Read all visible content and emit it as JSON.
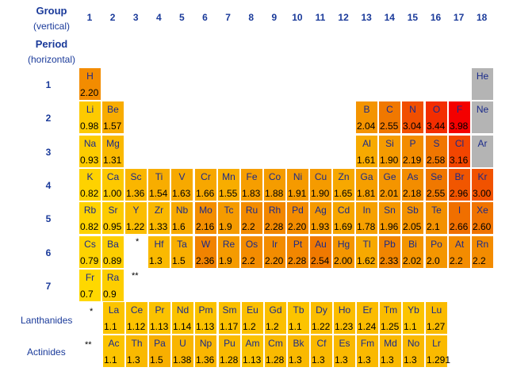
{
  "header": {
    "group_label": "Group",
    "group_sub": "(vertical)",
    "period_label": "Period",
    "period_sub": "(horizontal)"
  },
  "groups": [
    "1",
    "2",
    "3",
    "4",
    "5",
    "6",
    "7",
    "8",
    "9",
    "10",
    "11",
    "12",
    "13",
    "14",
    "15",
    "16",
    "17",
    "18"
  ],
  "periods": [
    "1",
    "2",
    "3",
    "4",
    "5",
    "6",
    "7"
  ],
  "series_labels": {
    "lanthanides": "Lanthanides",
    "actinides": "Actinides"
  },
  "markers": {
    "lanthanide": "*",
    "actinide": "**"
  },
  "colors": {
    "label_blue": "#1a3a9a",
    "scale_low": "#ffd800",
    "scale_mid": "#f07c00",
    "scale_high": "#f40000",
    "no_data": "#b4b4b4"
  },
  "elements": [
    {
      "s": "H",
      "en": "2.20",
      "row": 0,
      "col": 0
    },
    {
      "s": "He",
      "en": "",
      "row": 0,
      "col": 17
    },
    {
      "s": "Li",
      "en": "0.98",
      "row": 1,
      "col": 0
    },
    {
      "s": "Be",
      "en": "1.57",
      "row": 1,
      "col": 1
    },
    {
      "s": "B",
      "en": "2.04",
      "row": 1,
      "col": 12
    },
    {
      "s": "C",
      "en": "2.55",
      "row": 1,
      "col": 13
    },
    {
      "s": "N",
      "en": "3.04",
      "row": 1,
      "col": 14
    },
    {
      "s": "O",
      "en": "3.44",
      "row": 1,
      "col": 15
    },
    {
      "s": "F",
      "en": "3.98",
      "row": 1,
      "col": 16
    },
    {
      "s": "Ne",
      "en": "",
      "row": 1,
      "col": 17
    },
    {
      "s": "Na",
      "en": "0.93",
      "row": 2,
      "col": 0
    },
    {
      "s": "Mg",
      "en": "1.31",
      "row": 2,
      "col": 1
    },
    {
      "s": "Al",
      "en": "1.61",
      "row": 2,
      "col": 12
    },
    {
      "s": "Si",
      "en": "1.90",
      "row": 2,
      "col": 13
    },
    {
      "s": "P",
      "en": "2.19",
      "row": 2,
      "col": 14
    },
    {
      "s": "S",
      "en": "2.58",
      "row": 2,
      "col": 15
    },
    {
      "s": "Cl",
      "en": "3.16",
      "row": 2,
      "col": 16
    },
    {
      "s": "Ar",
      "en": "",
      "row": 2,
      "col": 17
    },
    {
      "s": "K",
      "en": "0.82",
      "row": 3,
      "col": 0
    },
    {
      "s": "Ca",
      "en": "1.00",
      "row": 3,
      "col": 1
    },
    {
      "s": "Sc",
      "en": "1.36",
      "row": 3,
      "col": 2
    },
    {
      "s": "Ti",
      "en": "1.54",
      "row": 3,
      "col": 3
    },
    {
      "s": "V",
      "en": "1.63",
      "row": 3,
      "col": 4
    },
    {
      "s": "Cr",
      "en": "1.66",
      "row": 3,
      "col": 5
    },
    {
      "s": "Mn",
      "en": "1.55",
      "row": 3,
      "col": 6
    },
    {
      "s": "Fe",
      "en": "1.83",
      "row": 3,
      "col": 7
    },
    {
      "s": "Co",
      "en": "1.88",
      "row": 3,
      "col": 8
    },
    {
      "s": "Ni",
      "en": "1.91",
      "row": 3,
      "col": 9
    },
    {
      "s": "Cu",
      "en": "1.90",
      "row": 3,
      "col": 10
    },
    {
      "s": "Zn",
      "en": "1.65",
      "row": 3,
      "col": 11
    },
    {
      "s": "Ga",
      "en": "1.81",
      "row": 3,
      "col": 12
    },
    {
      "s": "Ge",
      "en": "2.01",
      "row": 3,
      "col": 13
    },
    {
      "s": "As",
      "en": "2.18",
      "row": 3,
      "col": 14
    },
    {
      "s": "Se",
      "en": "2.55",
      "row": 3,
      "col": 15
    },
    {
      "s": "Br",
      "en": "2.96",
      "row": 3,
      "col": 16
    },
    {
      "s": "Kr",
      "en": "3.00",
      "row": 3,
      "col": 17
    },
    {
      "s": "Rb",
      "en": "0.82",
      "row": 4,
      "col": 0
    },
    {
      "s": "Sr",
      "en": "0.95",
      "row": 4,
      "col": 1
    },
    {
      "s": "Y",
      "en": "1.22",
      "row": 4,
      "col": 2
    },
    {
      "s": "Zr",
      "en": "1.33",
      "row": 4,
      "col": 3
    },
    {
      "s": "Nb",
      "en": "1.6",
      "row": 4,
      "col": 4
    },
    {
      "s": "Mo",
      "en": "2.16",
      "row": 4,
      "col": 5
    },
    {
      "s": "Tc",
      "en": "1.9",
      "row": 4,
      "col": 6
    },
    {
      "s": "Ru",
      "en": "2.2",
      "row": 4,
      "col": 7
    },
    {
      "s": "Rh",
      "en": "2.28",
      "row": 4,
      "col": 8
    },
    {
      "s": "Pd",
      "en": "2.20",
      "row": 4,
      "col": 9
    },
    {
      "s": "Ag",
      "en": "1.93",
      "row": 4,
      "col": 10
    },
    {
      "s": "Cd",
      "en": "1.69",
      "row": 4,
      "col": 11
    },
    {
      "s": "In",
      "en": "1.78",
      "row": 4,
      "col": 12
    },
    {
      "s": "Sn",
      "en": "1.96",
      "row": 4,
      "col": 13
    },
    {
      "s": "Sb",
      "en": "2.05",
      "row": 4,
      "col": 14
    },
    {
      "s": "Te",
      "en": "2.1",
      "row": 4,
      "col": 15
    },
    {
      "s": "I",
      "en": "2.66",
      "row": 4,
      "col": 16
    },
    {
      "s": "Xe",
      "en": "2.60",
      "row": 4,
      "col": 17
    },
    {
      "s": "Cs",
      "en": "0.79",
      "row": 5,
      "col": 0
    },
    {
      "s": "Ba",
      "en": "0.89",
      "row": 5,
      "col": 1
    },
    {
      "s": "Hf",
      "en": "1.3",
      "row": 5,
      "col": 3
    },
    {
      "s": "Ta",
      "en": "1.5",
      "row": 5,
      "col": 4
    },
    {
      "s": "W",
      "en": "2.36",
      "row": 5,
      "col": 5
    },
    {
      "s": "Re",
      "en": "1.9",
      "row": 5,
      "col": 6
    },
    {
      "s": "Os",
      "en": "2.2",
      "row": 5,
      "col": 7
    },
    {
      "s": "Ir",
      "en": "2.20",
      "row": 5,
      "col": 8
    },
    {
      "s": "Pt",
      "en": "2.28",
      "row": 5,
      "col": 9
    },
    {
      "s": "Au",
      "en": "2.54",
      "row": 5,
      "col": 10
    },
    {
      "s": "Hg",
      "en": "2.00",
      "row": 5,
      "col": 11
    },
    {
      "s": "Tl",
      "en": "1.62",
      "row": 5,
      "col": 12
    },
    {
      "s": "Pb",
      "en": "2.33",
      "row": 5,
      "col": 13
    },
    {
      "s": "Bi",
      "en": "2.02",
      "row": 5,
      "col": 14
    },
    {
      "s": "Po",
      "en": "2.0",
      "row": 5,
      "col": 15
    },
    {
      "s": "At",
      "en": "2.2",
      "row": 5,
      "col": 16
    },
    {
      "s": "Rn",
      "en": "2.2",
      "row": 5,
      "col": 17
    },
    {
      "s": "Fr",
      "en": "0.7",
      "row": 6,
      "col": 0
    },
    {
      "s": "Ra",
      "en": "0.9",
      "row": 6,
      "col": 1
    },
    {
      "s": "La",
      "en": "1.1",
      "row": 7,
      "col": 0
    },
    {
      "s": "Ce",
      "en": "1.12",
      "row": 7,
      "col": 1
    },
    {
      "s": "Pr",
      "en": "1.13",
      "row": 7,
      "col": 2
    },
    {
      "s": "Nd",
      "en": "1.14",
      "row": 7,
      "col": 3
    },
    {
      "s": "Pm",
      "en": "1.13",
      "row": 7,
      "col": 4
    },
    {
      "s": "Sm",
      "en": "1.17",
      "row": 7,
      "col": 5
    },
    {
      "s": "Eu",
      "en": "1.2",
      "row": 7,
      "col": 6
    },
    {
      "s": "Gd",
      "en": "1.2",
      "row": 7,
      "col": 7
    },
    {
      "s": "Tb",
      "en": "1.1",
      "row": 7,
      "col": 8
    },
    {
      "s": "Dy",
      "en": "1.22",
      "row": 7,
      "col": 9
    },
    {
      "s": "Ho",
      "en": "1.23",
      "row": 7,
      "col": 10
    },
    {
      "s": "Er",
      "en": "1.24",
      "row": 7,
      "col": 11
    },
    {
      "s": "Tm",
      "en": "1.25",
      "row": 7,
      "col": 12
    },
    {
      "s": "Yb",
      "en": "1.1",
      "row": 7,
      "col": 13
    },
    {
      "s": "Lu",
      "en": "1.27",
      "row": 7,
      "col": 14
    },
    {
      "s": "Ac",
      "en": "1.1",
      "row": 8,
      "col": 0
    },
    {
      "s": "Th",
      "en": "1.3",
      "row": 8,
      "col": 1
    },
    {
      "s": "Pa",
      "en": "1.5",
      "row": 8,
      "col": 2
    },
    {
      "s": "U",
      "en": "1.38",
      "row": 8,
      "col": 3
    },
    {
      "s": "Np",
      "en": "1.36",
      "row": 8,
      "col": 4
    },
    {
      "s": "Pu",
      "en": "1.28",
      "row": 8,
      "col": 5
    },
    {
      "s": "Am",
      "en": "1.13",
      "row": 8,
      "col": 6
    },
    {
      "s": "Cm",
      "en": "1.28",
      "row": 8,
      "col": 7
    },
    {
      "s": "Bk",
      "en": "1.3",
      "row": 8,
      "col": 8
    },
    {
      "s": "Cf",
      "en": "1.3",
      "row": 8,
      "col": 9
    },
    {
      "s": "Es",
      "en": "1.3",
      "row": 8,
      "col": 10
    },
    {
      "s": "Fm",
      "en": "1.3",
      "row": 8,
      "col": 11
    },
    {
      "s": "Md",
      "en": "1.3",
      "row": 8,
      "col": 12
    },
    {
      "s": "No",
      "en": "1.3",
      "row": 8,
      "col": 13
    },
    {
      "s": "Lr",
      "en": "1.291",
      "row": 8,
      "col": 14
    }
  ]
}
